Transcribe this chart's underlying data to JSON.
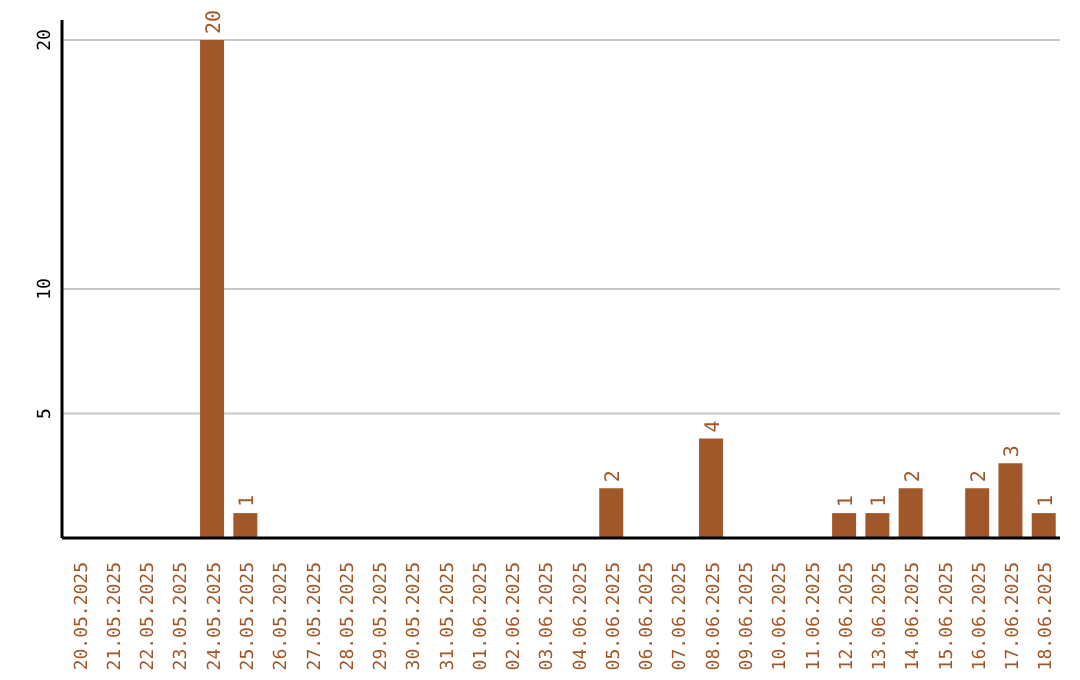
{
  "chart_data": {
    "type": "bar",
    "categories": [
      "20.05.2025",
      "21.05.2025",
      "22.05.2025",
      "23.05.2025",
      "24.05.2025",
      "25.05.2025",
      "26.05.2025",
      "27.05.2025",
      "28.05.2025",
      "29.05.2025",
      "30.05.2025",
      "31.05.2025",
      "01.06.2025",
      "02.06.2025",
      "03.06.2025",
      "04.06.2025",
      "05.06.2025",
      "06.06.2025",
      "07.06.2025",
      "08.06.2025",
      "09.06.2025",
      "10.06.2025",
      "11.06.2025",
      "12.06.2025",
      "13.06.2025",
      "14.06.2025",
      "15.06.2025",
      "16.06.2025",
      "17.06.2025",
      "18.06.2025"
    ],
    "values": [
      null,
      null,
      null,
      null,
      20,
      1,
      null,
      null,
      null,
      null,
      null,
      null,
      null,
      null,
      null,
      null,
      2,
      null,
      null,
      4,
      null,
      null,
      null,
      1,
      1,
      2,
      null,
      2,
      3,
      1
    ],
    "color": "#a0582a",
    "ylim": [
      0,
      20.8
    ],
    "yticks": [
      5,
      10,
      20
    ],
    "grid": "y",
    "data_labels": true
  }
}
